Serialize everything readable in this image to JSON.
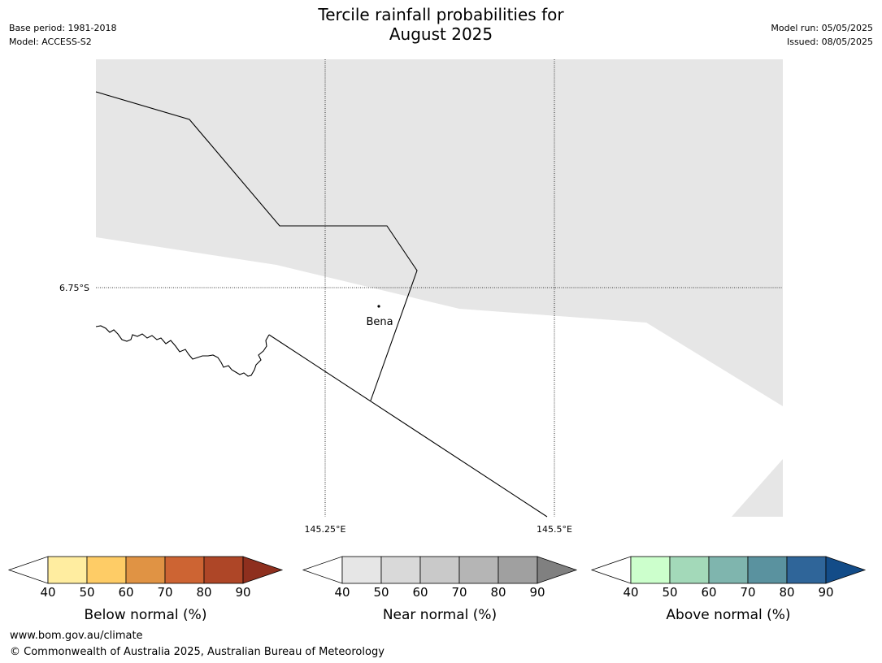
{
  "title_line1": "Tercile rainfall probabilities for",
  "title_line2": "August 2025",
  "meta_left": {
    "base_period": "Base period: 1981-2018",
    "model": "Model: ACCESS-S2"
  },
  "meta_right": {
    "model_run": "Model run: 05/05/2025",
    "issued": "Issued: 08/05/2025"
  },
  "map": {
    "lat_label": "6.75°S",
    "lon_labels": [
      "145.25°E",
      "145.5°E"
    ],
    "place": "Bena",
    "colors": {
      "land_shade": "#e6e6e6",
      "water": "#ffffff"
    }
  },
  "colorbars": [
    {
      "title": "Below normal (%)",
      "ticks": [
        "40",
        "50",
        "60",
        "70",
        "80",
        "90"
      ],
      "colors": [
        "#ffffff",
        "#ffeda0",
        "#fecc66",
        "#e09344",
        "#cd6433",
        "#ae4627",
        "#8e2f1e"
      ]
    },
    {
      "title": "Near normal (%)",
      "ticks": [
        "40",
        "50",
        "60",
        "70",
        "80",
        "90"
      ],
      "colors": [
        "#ffffff",
        "#e6e6e6",
        "#d9d9d9",
        "#c9c9c9",
        "#b5b5b5",
        "#a0a0a0",
        "#808080"
      ]
    },
    {
      "title": "Above normal (%)",
      "ticks": [
        "40",
        "50",
        "60",
        "70",
        "80",
        "90"
      ],
      "colors": [
        "#ffffff",
        "#ccffcc",
        "#a3d9b9",
        "#7fb5ae",
        "#5a929f",
        "#2f6599",
        "#134c88"
      ]
    }
  ],
  "footer": {
    "url": "www.bom.gov.au/climate",
    "copyright": "© Commonwealth of Australia 2025, Australian Bureau of Meteorology"
  }
}
